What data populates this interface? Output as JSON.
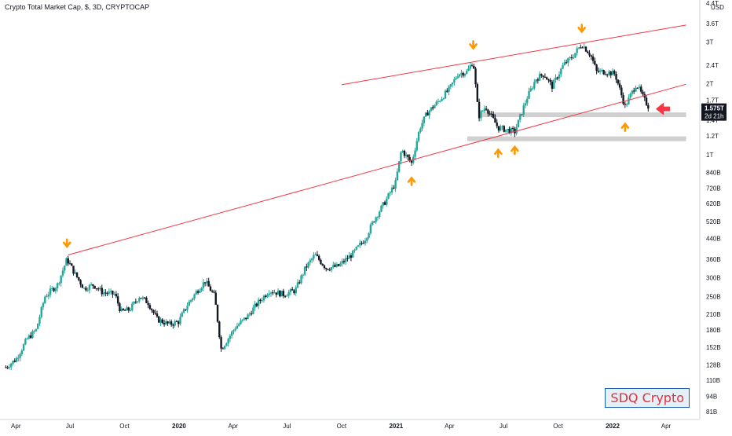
{
  "header": {
    "title": "Crypto Total Market Cap, $, 3D, CRYPTOCAP",
    "currency": "USD"
  },
  "watermark": "SDQ Crypto",
  "last_price": {
    "value": "1.575T",
    "countdown": "2d 21h"
  },
  "colors": {
    "up": "#26a69a",
    "down": "#131722",
    "trendline": "#f23645",
    "arrow": "#ff9800",
    "zone": "#c8c8c8",
    "big_arrow": "#f23645",
    "price_bg": "#131722"
  },
  "chart_data": {
    "type": "candlestick",
    "y_scale": "log",
    "y_ticks": [
      "81B",
      "94B",
      "110B",
      "128B",
      "152B",
      "180B",
      "210B",
      "250B",
      "300B",
      "360B",
      "440B",
      "520B",
      "620B",
      "720B",
      "840B",
      "1T",
      "1.2T",
      "1.4T",
      "1.7T",
      "2T",
      "2.4T",
      "3T",
      "3.6T",
      "4.4T"
    ],
    "y_tick_values": [
      81,
      94,
      110,
      128,
      152,
      180,
      210,
      250,
      300,
      360,
      440,
      520,
      620,
      720,
      840,
      1000,
      1200,
      1400,
      1700,
      2000,
      2400,
      3000,
      3600,
      4400
    ],
    "x_ticks": [
      "Apr",
      "Jul",
      "Oct",
      "2020",
      "Apr",
      "Jul",
      "Oct",
      "2021",
      "Apr",
      "Jul",
      "Oct",
      "2022",
      "Apr"
    ],
    "x_tick_dates": [
      "2019-04-01",
      "2019-07-01",
      "2019-10-01",
      "2020-01-01",
      "2020-04-01",
      "2020-07-01",
      "2020-10-01",
      "2021-01-01",
      "2021-04-01",
      "2021-07-01",
      "2021-10-01",
      "2022-01-01",
      "2022-04-01"
    ],
    "series_points": [
      [
        "2019-03-15",
        125
      ],
      [
        "2019-04-01",
        135
      ],
      [
        "2019-04-20",
        165
      ],
      [
        "2019-05-05",
        180
      ],
      [
        "2019-05-20",
        250
      ],
      [
        "2019-06-10",
        280
      ],
      [
        "2019-06-26",
        360
      ],
      [
        "2019-07-10",
        310
      ],
      [
        "2019-07-25",
        270
      ],
      [
        "2019-08-10",
        280
      ],
      [
        "2019-08-25",
        260
      ],
      [
        "2019-09-15",
        255
      ],
      [
        "2019-09-25",
        215
      ],
      [
        "2019-10-10",
        220
      ],
      [
        "2019-10-26",
        250
      ],
      [
        "2019-11-10",
        235
      ],
      [
        "2019-11-25",
        200
      ],
      [
        "2019-12-15",
        190
      ],
      [
        "2019-12-31",
        195
      ],
      [
        "2020-01-15",
        230
      ],
      [
        "2020-02-01",
        265
      ],
      [
        "2020-02-14",
        290
      ],
      [
        "2020-03-01",
        250
      ],
      [
        "2020-03-12",
        150
      ],
      [
        "2020-03-20",
        160
      ],
      [
        "2020-04-05",
        185
      ],
      [
        "2020-04-25",
        205
      ],
      [
        "2020-05-10",
        230
      ],
      [
        "2020-06-01",
        265
      ],
      [
        "2020-06-25",
        255
      ],
      [
        "2020-07-15",
        265
      ],
      [
        "2020-08-01",
        330
      ],
      [
        "2020-08-17",
        375
      ],
      [
        "2020-09-05",
        330
      ],
      [
        "2020-09-25",
        335
      ],
      [
        "2020-10-20",
        380
      ],
      [
        "2020-11-10",
        440
      ],
      [
        "2020-11-25",
        530
      ],
      [
        "2020-12-15",
        640
      ],
      [
        "2020-12-31",
        760
      ],
      [
        "2021-01-10",
        1050
      ],
      [
        "2021-01-27",
        920
      ],
      [
        "2021-02-10",
        1300
      ],
      [
        "2021-02-22",
        1500
      ],
      [
        "2021-03-10",
        1650
      ],
      [
        "2021-04-01",
        1900
      ],
      [
        "2021-04-15",
        2200
      ],
      [
        "2021-05-01",
        2250
      ],
      [
        "2021-05-11",
        2500
      ],
      [
        "2021-05-20",
        1450
      ],
      [
        "2021-06-01",
        1600
      ],
      [
        "2021-06-22",
        1300
      ],
      [
        "2021-07-20",
        1250
      ],
      [
        "2021-08-10",
        1750
      ],
      [
        "2021-08-25",
        2100
      ],
      [
        "2021-09-07",
        2200
      ],
      [
        "2021-09-21",
        1950
      ],
      [
        "2021-10-10",
        2400
      ],
      [
        "2021-10-25",
        2600
      ],
      [
        "2021-11-10",
        2950
      ],
      [
        "2021-11-25",
        2650
      ],
      [
        "2021-12-05",
        2250
      ],
      [
        "2021-12-20",
        2250
      ],
      [
        "2022-01-05",
        2200
      ],
      [
        "2022-01-22",
        1600
      ],
      [
        "2022-02-10",
        2000
      ],
      [
        "2022-02-24",
        1700
      ],
      [
        "2022-03-04",
        1575
      ]
    ],
    "trendlines": [
      {
        "from": [
          "2019-06-28",
          375
        ],
        "to": [
          "2022-05-05",
          1990
        ]
      },
      {
        "from": [
          "2020-10-01",
          1980
        ],
        "to": [
          "2022-05-05",
          3550
        ]
      }
    ],
    "zones": [
      {
        "from": "2021-05-20",
        "to": "2022-05-05",
        "low": 1450,
        "high": 1510
      },
      {
        "from": "2021-05-01",
        "to": "2022-05-05",
        "low": 1140,
        "high": 1195
      }
    ],
    "arrows_down": [
      [
        "2019-06-26",
        410
      ],
      [
        "2021-05-11",
        2850
      ],
      [
        "2021-11-10",
        3350
      ]
    ],
    "arrows_up": [
      [
        "2021-01-27",
        790
      ],
      [
        "2021-06-22",
        1040
      ],
      [
        "2021-07-20",
        1070
      ],
      [
        "2022-01-22",
        1340
      ]
    ]
  }
}
